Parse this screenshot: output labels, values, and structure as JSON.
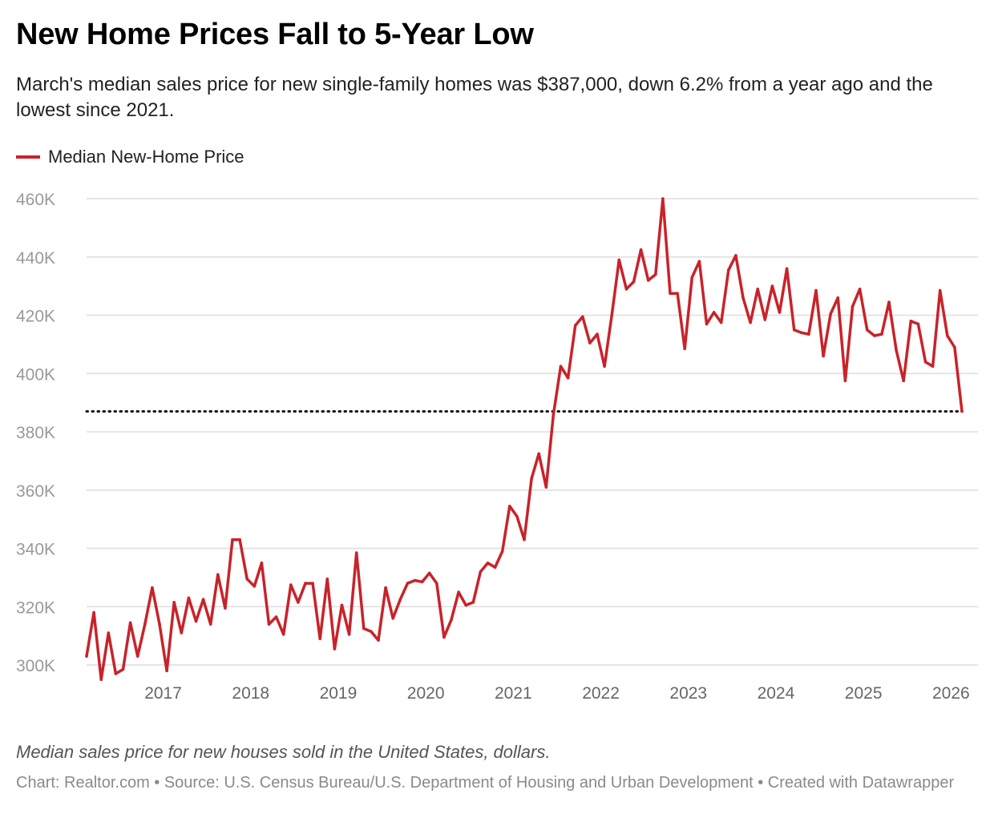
{
  "title": "New Home Prices Fall to 5-Year Low",
  "subtitle": "March's median sales price for new single-family homes was $387,000, down 6.2% from a year ago and the lowest since 2021.",
  "notes": "Median sales price for new houses sold in the United States, dollars.",
  "source": "Chart: Realtor.com • Source: U.S. Census Bureau/U.S. Department of Housing and Urban Development • Created with Datawrapper",
  "colors": {
    "line": "#c8232a",
    "grid": "#dedede",
    "tick_text": "#999999",
    "reference_line": "#111111"
  },
  "chart_data": {
    "type": "line",
    "title": "New Home Prices Fall to 5-Year Low",
    "xlabel": "",
    "ylabel": "",
    "ylim": [
      300000,
      460000
    ],
    "y_ticks": [
      {
        "value": 300000,
        "label": "300K"
      },
      {
        "value": 320000,
        "label": "320K"
      },
      {
        "value": 340000,
        "label": "340K"
      },
      {
        "value": 360000,
        "label": "360K"
      },
      {
        "value": 380000,
        "label": "380K"
      },
      {
        "value": 400000,
        "label": "400K"
      },
      {
        "value": 420000,
        "label": "420K"
      },
      {
        "value": 440000,
        "label": "440K"
      },
      {
        "value": 460000,
        "label": "460K"
      }
    ],
    "x_ticks": [
      {
        "value": 2017,
        "label": "2017"
      },
      {
        "value": 2018,
        "label": "2018"
      },
      {
        "value": 2019,
        "label": "2019"
      },
      {
        "value": 2020,
        "label": "2020"
      },
      {
        "value": 2021,
        "label": "2021"
      },
      {
        "value": 2022,
        "label": "2022"
      },
      {
        "value": 2023,
        "label": "2023"
      },
      {
        "value": 2024,
        "label": "2024"
      },
      {
        "value": 2025,
        "label": "2025"
      },
      {
        "value": 2026,
        "label": "2026"
      }
    ],
    "reference_line": {
      "value": 387000,
      "style": "dotted"
    },
    "grid": true,
    "legend_position": "top-left",
    "series": [
      {
        "name": "Median New-Home Price",
        "start": "2016-03",
        "frequency": "monthly",
        "values": [
          303000,
          318000,
          295000,
          311000,
          297000,
          298500,
          314500,
          303000,
          314000,
          326500,
          314000,
          298000,
          321500,
          311000,
          323000,
          315000,
          322500,
          314000,
          331000,
          319500,
          343000,
          343000,
          329500,
          327000,
          335000,
          314000,
          316500,
          310500,
          327500,
          321500,
          328000,
          328000,
          309000,
          329500,
          305500,
          320500,
          310500,
          338500,
          312500,
          311500,
          308500,
          326500,
          316000,
          322500,
          328000,
          329000,
          328500,
          331500,
          328000,
          309500,
          315500,
          325000,
          320500,
          321500,
          332000,
          335000,
          333500,
          339000,
          354500,
          351000,
          343000,
          364000,
          372500,
          361000,
          386000,
          402500,
          398500,
          416500,
          419500,
          410500,
          413500,
          402500,
          420000,
          439000,
          429000,
          431500,
          442500,
          432000,
          434000,
          460000,
          427500,
          427500,
          408500,
          433000,
          438500,
          417000,
          421000,
          417500,
          435500,
          440500,
          426000,
          417500,
          429000,
          418500,
          430000,
          421000,
          436000,
          415000,
          414000,
          413500,
          428500,
          406000,
          420500,
          426000,
          397500,
          423000,
          429000,
          415000,
          413000,
          413500,
          424500,
          408000,
          397500,
          418000,
          417000,
          404000,
          402500,
          428500,
          413000,
          409000,
          387000
        ]
      }
    ]
  }
}
